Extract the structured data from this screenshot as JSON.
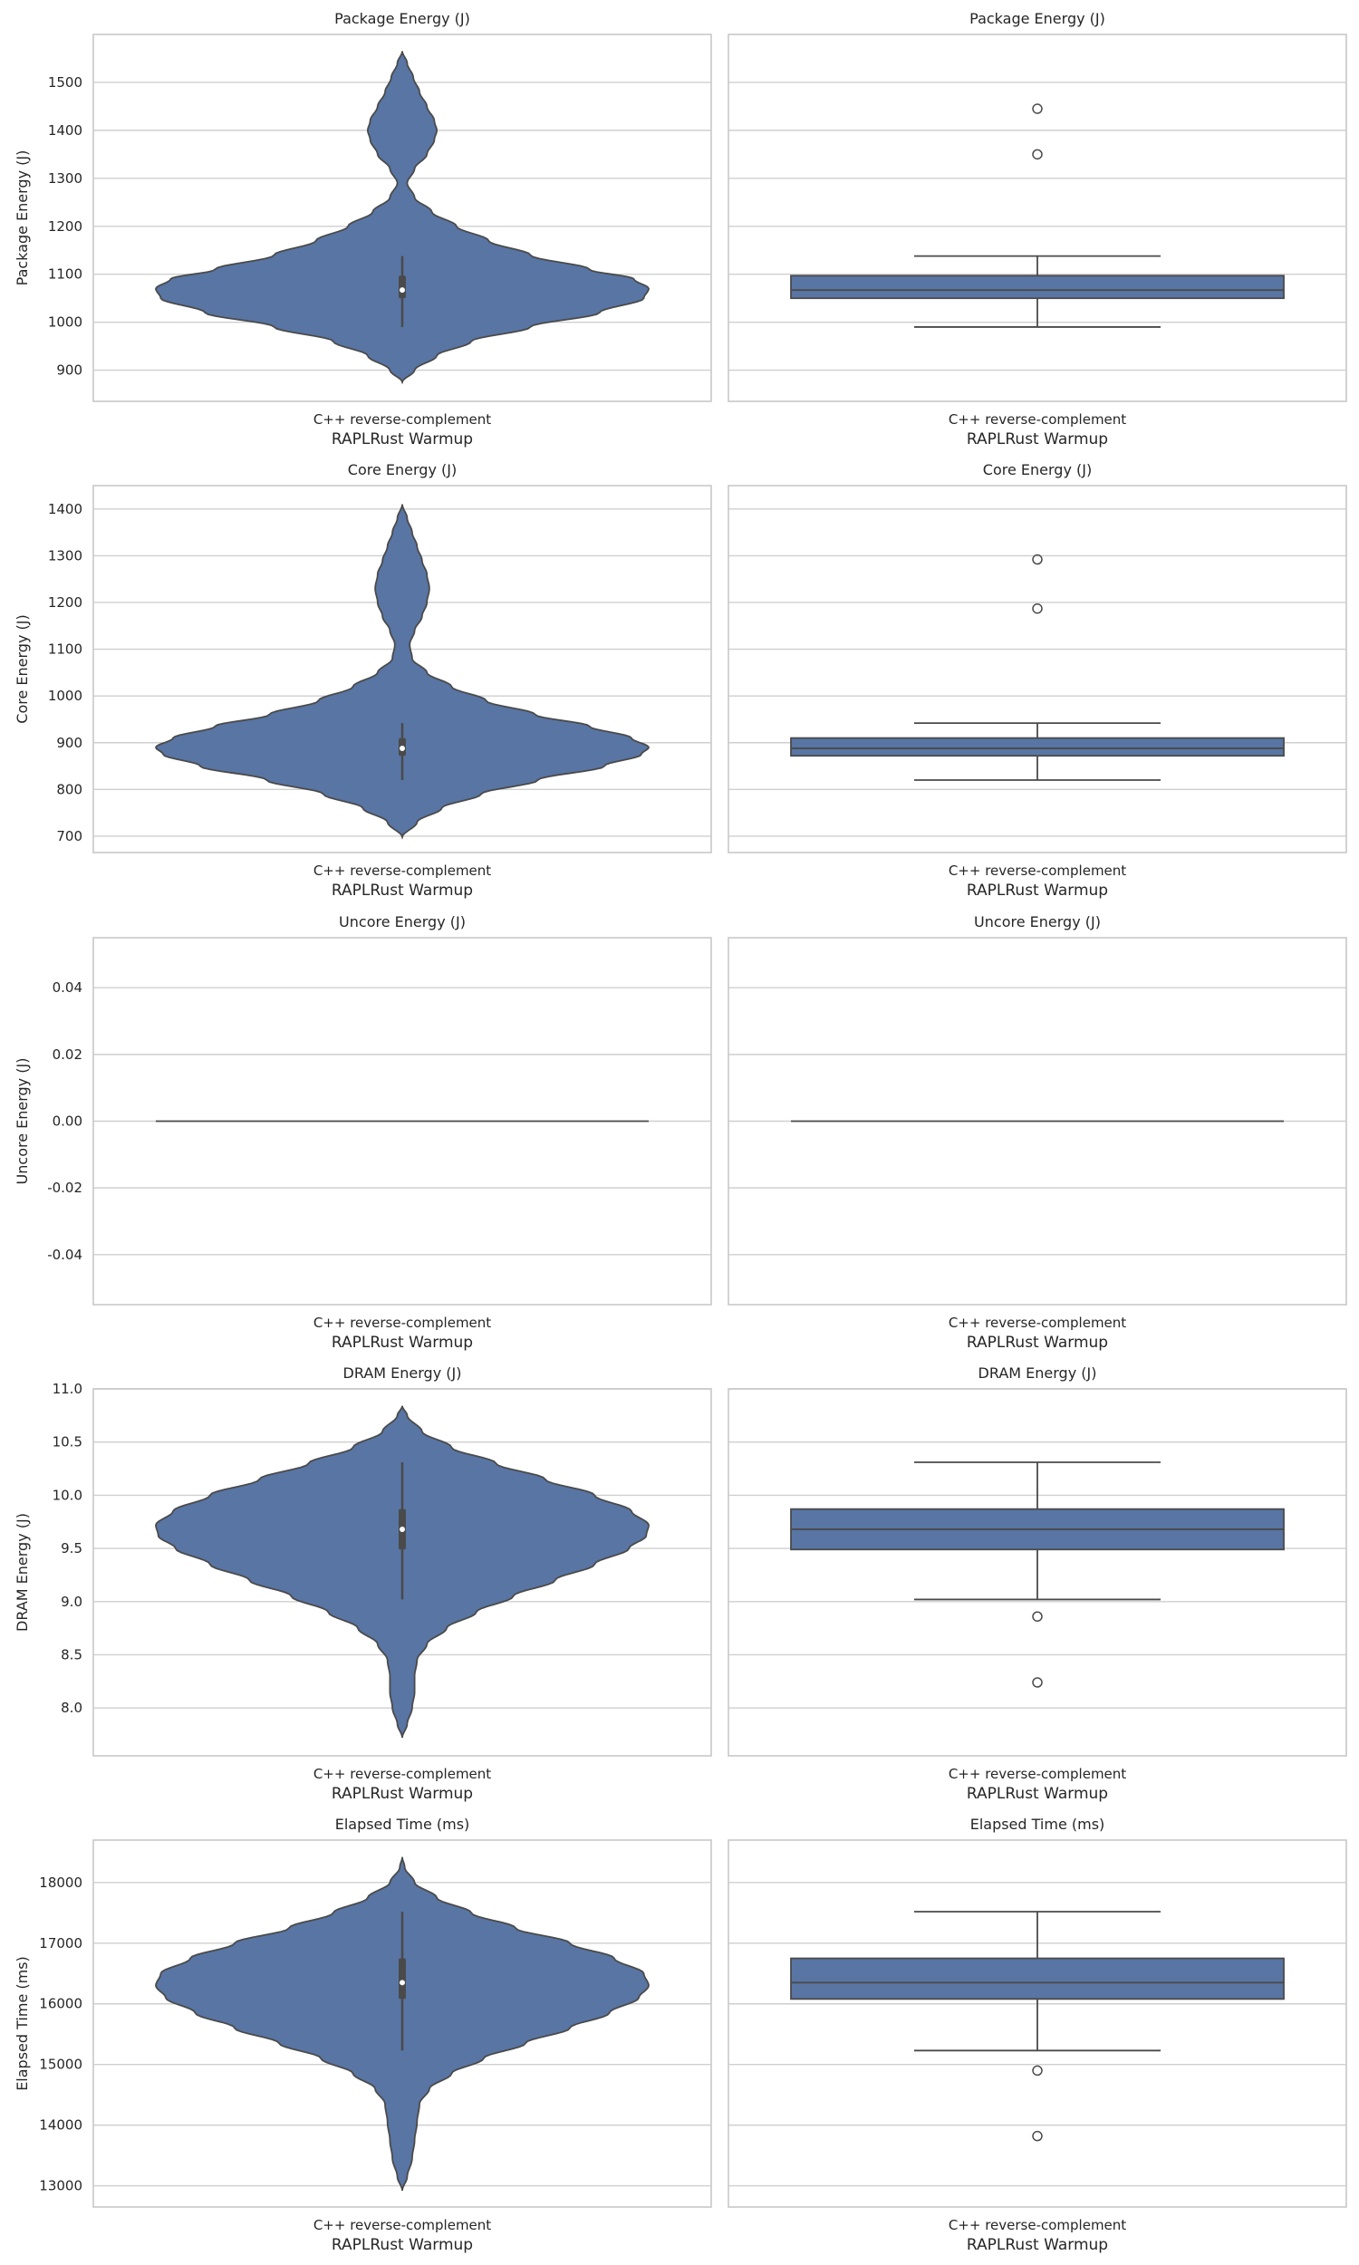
{
  "figure": {
    "colors": {
      "fill": "#5875a4",
      "edge": "#4a4a4a",
      "grid": "#cfcfcf",
      "frame": "#c8c8c8",
      "text": "#262626"
    }
  },
  "chart_data": [
    {
      "type": "violin",
      "title": "Package Energy (J)",
      "ylabel": "Package Energy (J)",
      "xlabel": "RAPLRust Warmup",
      "categories": [
        "C++ reverse-complement"
      ],
      "ylim": [
        835,
        1600
      ],
      "yticks": [
        900,
        1000,
        1100,
        1200,
        1300,
        1400,
        1500
      ],
      "grid": true,
      "density_profile": [
        [
          875,
          0.0
        ],
        [
          900,
          0.05
        ],
        [
          930,
          0.14
        ],
        [
          960,
          0.28
        ],
        [
          990,
          0.52
        ],
        [
          1020,
          0.8
        ],
        [
          1050,
          0.98
        ],
        [
          1070,
          1.0
        ],
        [
          1090,
          0.94
        ],
        [
          1110,
          0.76
        ],
        [
          1140,
          0.52
        ],
        [
          1170,
          0.35
        ],
        [
          1200,
          0.22
        ],
        [
          1230,
          0.12
        ],
        [
          1260,
          0.05
        ],
        [
          1290,
          0.02
        ],
        [
          1320,
          0.05
        ],
        [
          1350,
          0.1
        ],
        [
          1380,
          0.13
        ],
        [
          1400,
          0.14
        ],
        [
          1420,
          0.13
        ],
        [
          1450,
          0.1
        ],
        [
          1480,
          0.07
        ],
        [
          1510,
          0.045
        ],
        [
          1540,
          0.02
        ],
        [
          1565,
          0.0
        ]
      ],
      "quartiles": {
        "q1": 1050,
        "median": 1067,
        "q3": 1097
      },
      "whiskers": {
        "low": 990,
        "high": 1138
      },
      "outliers": [
        1350,
        1445
      ]
    },
    {
      "type": "box",
      "title": "Package Energy (J)",
      "xlabel": "RAPLRust Warmup",
      "categories": [
        "C++ reverse-complement"
      ],
      "ylim": [
        835,
        1600
      ],
      "yticks": [
        900,
        1000,
        1100,
        1200,
        1300,
        1400,
        1500
      ],
      "grid": true,
      "quartiles": {
        "q1": 1050,
        "median": 1067,
        "q3": 1097
      },
      "whiskers": {
        "low": 990,
        "high": 1138
      },
      "outliers": [
        1350,
        1445
      ]
    },
    {
      "type": "violin",
      "title": "Core Energy (J)",
      "ylabel": "Core Energy (J)",
      "xlabel": "RAPLRust Warmup",
      "categories": [
        "C++ reverse-complement"
      ],
      "ylim": [
        665,
        1450
      ],
      "yticks": [
        700,
        800,
        900,
        1000,
        1100,
        1200,
        1300,
        1400
      ],
      "grid": true,
      "density_profile": [
        [
          698,
          0.0
        ],
        [
          730,
          0.06
        ],
        [
          760,
          0.16
        ],
        [
          790,
          0.32
        ],
        [
          820,
          0.55
        ],
        [
          850,
          0.82
        ],
        [
          875,
          0.97
        ],
        [
          890,
          1.0
        ],
        [
          910,
          0.93
        ],
        [
          935,
          0.76
        ],
        [
          960,
          0.54
        ],
        [
          990,
          0.34
        ],
        [
          1020,
          0.2
        ],
        [
          1050,
          0.1
        ],
        [
          1080,
          0.04
        ],
        [
          1110,
          0.03
        ],
        [
          1140,
          0.05
        ],
        [
          1170,
          0.08
        ],
        [
          1200,
          0.1
        ],
        [
          1230,
          0.11
        ],
        [
          1260,
          0.1
        ],
        [
          1290,
          0.08
        ],
        [
          1320,
          0.06
        ],
        [
          1350,
          0.04
        ],
        [
          1380,
          0.02
        ],
        [
          1410,
          0.0
        ]
      ],
      "quartiles": {
        "q1": 872,
        "median": 888,
        "q3": 910
      },
      "whiskers": {
        "low": 820,
        "high": 942
      },
      "outliers": [
        1187,
        1292
      ]
    },
    {
      "type": "box",
      "title": "Core Energy (J)",
      "xlabel": "RAPLRust Warmup",
      "categories": [
        "C++ reverse-complement"
      ],
      "ylim": [
        665,
        1450
      ],
      "yticks": [
        700,
        800,
        900,
        1000,
        1100,
        1200,
        1300,
        1400
      ],
      "grid": true,
      "quartiles": {
        "q1": 872,
        "median": 888,
        "q3": 910
      },
      "whiskers": {
        "low": 820,
        "high": 942
      },
      "outliers": [
        1187,
        1292
      ]
    },
    {
      "type": "violin",
      "title": "Uncore Energy (J)",
      "ylabel": "Uncore Energy (J)",
      "xlabel": "RAPLRust Warmup",
      "categories": [
        "C++ reverse-complement"
      ],
      "ylim": [
        -0.055,
        0.055
      ],
      "yticks": [
        -0.04,
        -0.02,
        0.0,
        0.02,
        0.04
      ],
      "tick_decimals": 2,
      "grid": true,
      "constant_value": 0.0
    },
    {
      "type": "box",
      "title": "Uncore Energy (J)",
      "xlabel": "RAPLRust Warmup",
      "categories": [
        "C++ reverse-complement"
      ],
      "ylim": [
        -0.055,
        0.055
      ],
      "yticks": [
        -0.04,
        -0.02,
        0.0,
        0.02,
        0.04
      ],
      "grid": true,
      "constant_value": 0.0
    },
    {
      "type": "violin",
      "title": "DRAM Energy (J)",
      "ylabel": "DRAM Energy (J)",
      "xlabel": "RAPLRust Warmup",
      "categories": [
        "C++ reverse-complement"
      ],
      "ylim": [
        7.55,
        11.0
      ],
      "yticks": [
        8.0,
        8.5,
        9.0,
        9.5,
        10.0,
        10.5,
        11.0
      ],
      "tick_decimals": 1,
      "grid": true,
      "density_profile": [
        [
          7.72,
          0.0
        ],
        [
          7.85,
          0.02
        ],
        [
          8.0,
          0.04
        ],
        [
          8.15,
          0.05
        ],
        [
          8.3,
          0.05
        ],
        [
          8.45,
          0.06
        ],
        [
          8.6,
          0.1
        ],
        [
          8.75,
          0.18
        ],
        [
          8.9,
          0.3
        ],
        [
          9.05,
          0.45
        ],
        [
          9.2,
          0.62
        ],
        [
          9.35,
          0.78
        ],
        [
          9.5,
          0.92
        ],
        [
          9.62,
          0.99
        ],
        [
          9.72,
          1.0
        ],
        [
          9.85,
          0.93
        ],
        [
          10.0,
          0.78
        ],
        [
          10.15,
          0.58
        ],
        [
          10.3,
          0.38
        ],
        [
          10.45,
          0.2
        ],
        [
          10.6,
          0.08
        ],
        [
          10.75,
          0.02
        ],
        [
          10.84,
          0.0
        ]
      ],
      "quartiles": {
        "q1": 9.49,
        "median": 9.68,
        "q3": 9.87
      },
      "whiskers": {
        "low": 9.02,
        "high": 10.31
      },
      "outliers": [
        8.86,
        8.24
      ]
    },
    {
      "type": "box",
      "title": "DRAM Energy (J)",
      "xlabel": "RAPLRust Warmup",
      "categories": [
        "C++ reverse-complement"
      ],
      "ylim": [
        7.55,
        11.0
      ],
      "yticks": [
        8.0,
        8.5,
        9.0,
        9.5,
        10.0,
        10.5,
        11.0
      ],
      "grid": true,
      "quartiles": {
        "q1": 9.49,
        "median": 9.68,
        "q3": 9.87
      },
      "whiskers": {
        "low": 9.02,
        "high": 10.31
      },
      "outliers": [
        8.86,
        8.24
      ]
    },
    {
      "type": "violin",
      "title": "Elapsed Time (ms)",
      "ylabel": "Elapsed Time (ms)",
      "xlabel": "RAPLRust Warmup",
      "categories": [
        "C++ reverse-complement"
      ],
      "ylim": [
        12650,
        18700
      ],
      "yticks": [
        13000,
        14000,
        15000,
        16000,
        17000,
        18000
      ],
      "grid": true,
      "density_profile": [
        [
          12920,
          0.0
        ],
        [
          13150,
          0.02
        ],
        [
          13450,
          0.04
        ],
        [
          13750,
          0.05
        ],
        [
          14050,
          0.06
        ],
        [
          14350,
          0.07
        ],
        [
          14600,
          0.11
        ],
        [
          14850,
          0.2
        ],
        [
          15100,
          0.33
        ],
        [
          15350,
          0.5
        ],
        [
          15600,
          0.68
        ],
        [
          15850,
          0.84
        ],
        [
          16100,
          0.96
        ],
        [
          16300,
          1.0
        ],
        [
          16500,
          0.98
        ],
        [
          16750,
          0.86
        ],
        [
          17000,
          0.68
        ],
        [
          17250,
          0.46
        ],
        [
          17500,
          0.28
        ],
        [
          17750,
          0.14
        ],
        [
          18000,
          0.05
        ],
        [
          18250,
          0.01
        ],
        [
          18420,
          0.0
        ]
      ],
      "quartiles": {
        "q1": 16080,
        "median": 16350,
        "q3": 16750
      },
      "whiskers": {
        "low": 15230,
        "high": 17520
      },
      "outliers": [
        14900,
        13820
      ]
    },
    {
      "type": "box",
      "title": "Elapsed Time (ms)",
      "xlabel": "RAPLRust Warmup",
      "categories": [
        "C++ reverse-complement"
      ],
      "ylim": [
        12650,
        18700
      ],
      "yticks": [
        13000,
        14000,
        15000,
        16000,
        17000,
        18000
      ],
      "grid": true,
      "quartiles": {
        "q1": 16080,
        "median": 16350,
        "q3": 16750
      },
      "whiskers": {
        "low": 15230,
        "high": 17520
      },
      "outliers": [
        14900,
        13820
      ]
    }
  ]
}
